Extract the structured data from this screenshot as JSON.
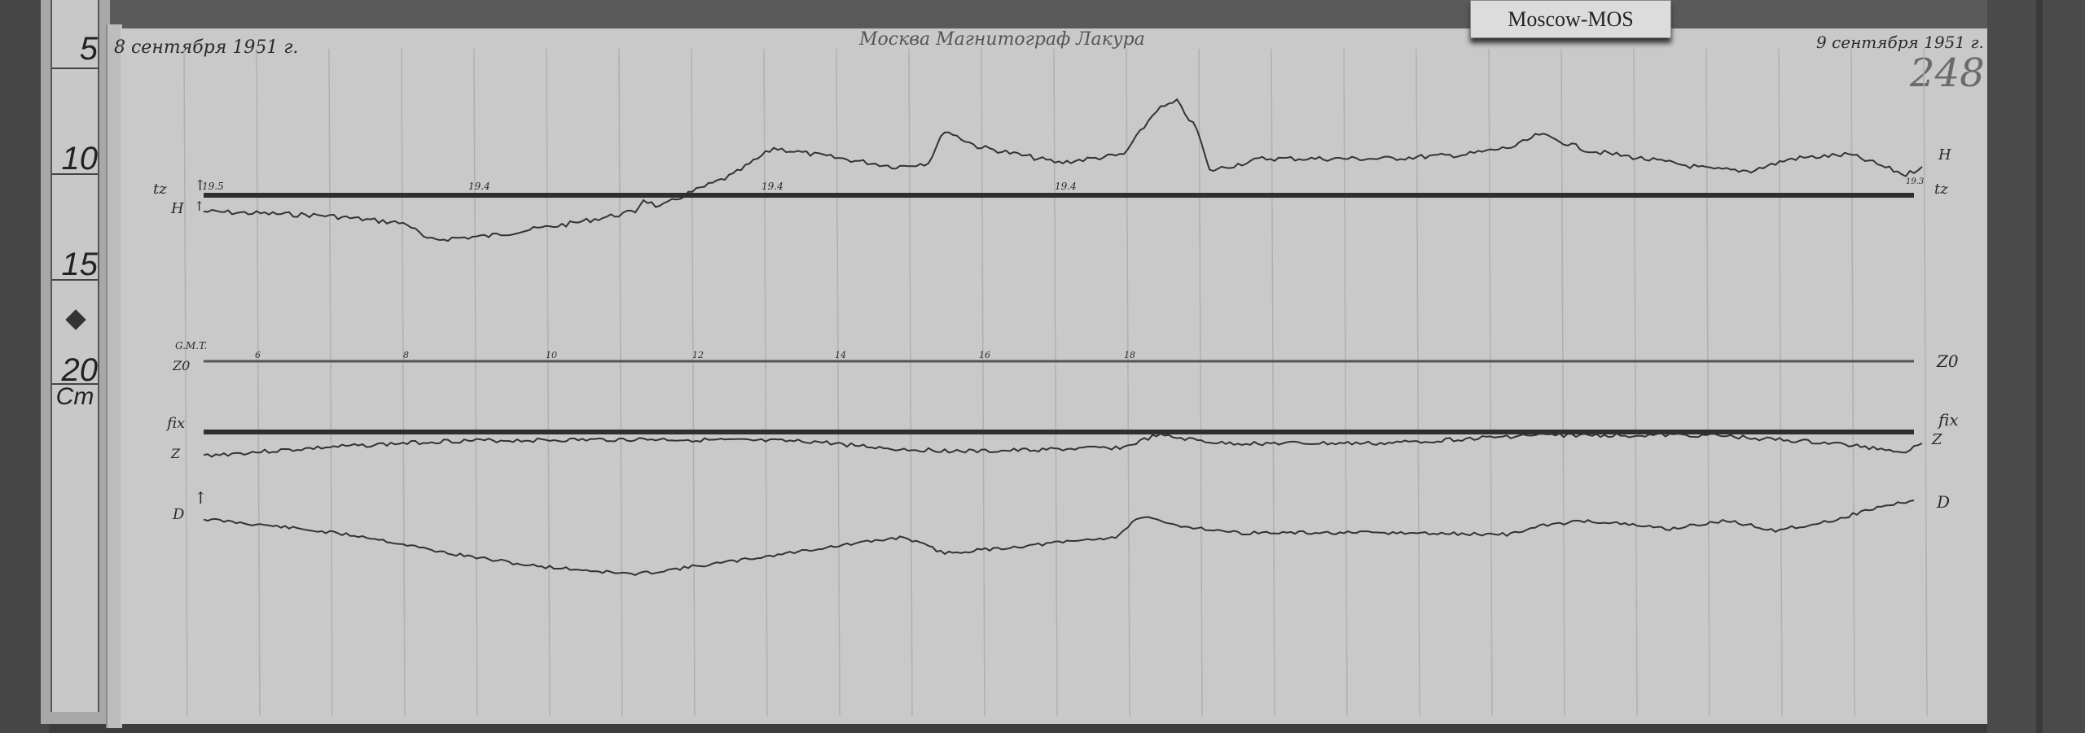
{
  "ruler": {
    "marks": [
      "5",
      "10",
      "15",
      "20"
    ],
    "unit": "Cm"
  },
  "tag": "Moscow-MOS",
  "header": {
    "date_left": "8 сентября 1951 г.",
    "title": "Москва   Магнитограф   Лакура",
    "date_right": "9 сентября 1951 г.",
    "sheet_number": "248"
  },
  "traces": {
    "tz_label": "tz",
    "h_label": "H",
    "z0_label": "Z0",
    "fix_label": "fix",
    "z_label": "Z",
    "d_label": "D",
    "gmt_label": "G.M.T.",
    "temp_values": [
      "19.5",
      "19.4",
      "19.4",
      "19.4",
      "19.3"
    ],
    "hour_labels": [
      "6",
      "8",
      "10",
      "12",
      "14",
      "16",
      "18"
    ]
  },
  "colors": {
    "paper": "#c9c9c9",
    "ink": "#2a2a2a",
    "background": "#3c3c3c"
  }
}
